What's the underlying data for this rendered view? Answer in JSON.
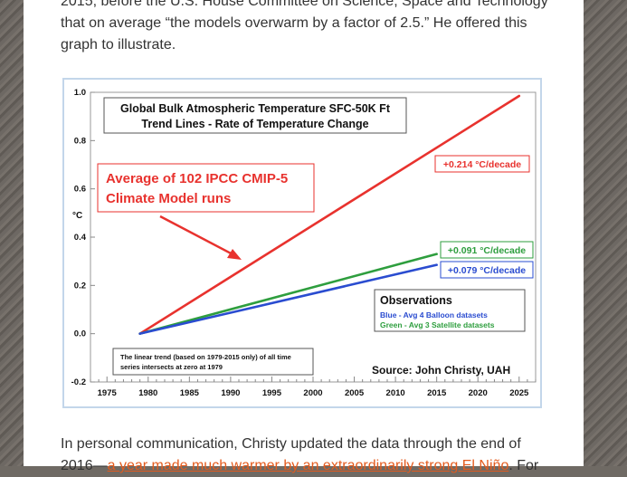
{
  "article": {
    "para1": {
      "line1": "2015, before the U.S. House Committee on Science, Space and Technology",
      "line2": "that on average “the models overwarm by a factor of 2.5.” He offered this",
      "line3": "graph to illustrate."
    },
    "para2": {
      "line1": "In personal communication, Christy updated the data through the end of",
      "line2_prefix": "2016—",
      "line2_link": "a year made much warmer by an extraordinarily strong El Niño",
      "line2_suffix": ". For"
    }
  },
  "chart_data": {
    "type": "line",
    "title_line1": "Global Bulk Atmospheric Temperature SFC-50K  Ft",
    "title_line2": "Trend Lines - Rate of Temperature Change",
    "ylabel": "°C",
    "xlim": [
      1973,
      2027
    ],
    "ylim": [
      -0.2,
      1.0
    ],
    "x_ticks": [
      1975,
      1980,
      1985,
      1990,
      1995,
      2000,
      2005,
      2010,
      2015,
      2020,
      2025
    ],
    "y_ticks": [
      "1.0",
      "0.8",
      "0.6",
      "0.4",
      "0.2",
      "0.0",
      "-0.2"
    ],
    "y_tick_values": [
      1.0,
      0.8,
      0.6,
      0.4,
      0.2,
      0.0,
      -0.2
    ],
    "series": [
      {
        "id": "models",
        "color": "#e8322e",
        "x": [
          1979,
          2025
        ],
        "y": [
          0.0,
          0.985
        ],
        "label": "+0.214 °C/decade"
      },
      {
        "id": "satellite",
        "color": "#2e9e3e",
        "x": [
          1979,
          2015
        ],
        "y": [
          0.0,
          0.33
        ],
        "label": "+0.091 °C/decade"
      },
      {
        "id": "balloon",
        "color": "#2a4cd0",
        "x": [
          1979,
          2015
        ],
        "y": [
          0.0,
          0.285
        ],
        "label": "+0.079 °C/decade"
      }
    ],
    "models_callout": {
      "line1": "Average of 102 IPCC CMIP-5",
      "line2": "Climate Model runs"
    },
    "observations": {
      "title": "Observations",
      "blue_line": "Blue - Avg 4 Balloon datasets",
      "green_line": "Green - Avg 3 Satellite datasets"
    },
    "note": {
      "line1": "The linear trend (based on 1979-2015 only) of all time",
      "line2": "series intersects at zero at 1979"
    },
    "source": "Source: John Christy, UAH",
    "colors": {
      "models": "#e8322e",
      "satellite": "#2e9e3e",
      "balloon": "#2a4cd0"
    }
  }
}
